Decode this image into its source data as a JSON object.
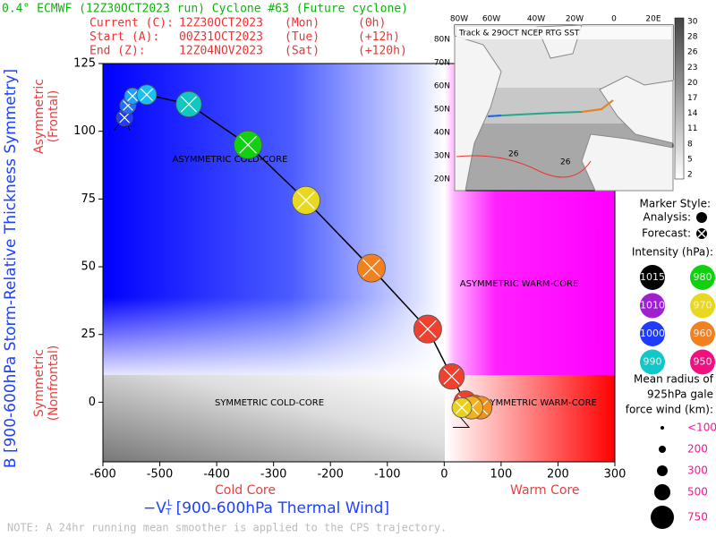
{
  "header": {
    "title": "0.4° ECMWF (12Z30OCT2023 run) Cyclone #63 (Future cyclone)",
    "lines": [
      {
        "label": "Current (C):",
        "time": "12Z30OCT2023",
        "day": "(Mon)",
        "lead": "(0h)"
      },
      {
        "label": "Start (A):",
        "time": "00Z31OCT2023",
        "day": "(Tue)",
        "lead": "(+12h)"
      },
      {
        "label": "End (Z):",
        "time": "12Z04NOV2023",
        "day": "(Sat)",
        "lead": "(+120h)"
      }
    ]
  },
  "chart_data": {
    "type": "line",
    "y_label": "B [900-600hPa Storm-Relative Thickness Symmetry]",
    "y_top_label": [
      "Asymmetric",
      "(Frontal)"
    ],
    "y_bottom_label": [
      "Symmetric",
      "(Nonfrontal)"
    ],
    "x_label": {
      "symbol": "−V",
      "sub": "T",
      "sup": "L",
      "text": " [900-600hPa Thermal Wind]"
    },
    "x_left_label": "Cold Core",
    "x_right_label": "Warm Core",
    "quadrant_labels": [
      "ASYMMETRIC COLD-CORE",
      "ASYMMETRIC WARM-CORE",
      "SYMMETRIC COLD-CORE",
      "SYMMETRIC WARM-CORE"
    ],
    "x": [
      -562,
      -556,
      -548,
      -523,
      -449,
      -345,
      -243,
      -128,
      -29,
      13,
      37,
      53,
      64,
      48,
      31
    ],
    "values": [
      105,
      109.5,
      113,
      113.5,
      110,
      95,
      74.5,
      49.5,
      27,
      9.5,
      0,
      -1.5,
      -2,
      -2,
      -2
    ],
    "gale_radius_km": [
      100,
      100,
      100,
      150,
      250,
      300,
      300,
      300,
      300,
      250,
      200,
      200,
      200,
      200,
      150
    ],
    "colors": [
      "#1e3cff",
      "#2070ff",
      "#1ea0ff",
      "#18c0f0",
      "#10c8c0",
      "#10d010",
      "#e8d820",
      "#f08020",
      "#f04030",
      "#f04030",
      "#f04030",
      "#f07020",
      "#f09020",
      "#f0b020",
      "#e8d020"
    ],
    "line_color": "#000000",
    "xlim": [
      -600,
      300
    ],
    "ylim": [
      -22,
      125
    ],
    "xticks": [
      -600,
      -500,
      -400,
      -300,
      -200,
      -100,
      0,
      100,
      200,
      300
    ],
    "yticks": [
      0,
      25,
      50,
      75,
      100,
      125
    ]
  },
  "inset": {
    "title": "Track & 29OCT NCEP RTG SST",
    "lon_labels": [
      "80W",
      "60W",
      "40W",
      "20W",
      "0",
      "20E"
    ],
    "lat_labels": [
      "80N",
      "70N",
      "60N",
      "50N",
      "40N",
      "30N",
      "20N"
    ],
    "colorbar_labels": [
      "30",
      "28",
      "26",
      "23",
      "20",
      "17",
      "14",
      "11",
      "8",
      "5",
      "2"
    ],
    "contour_labels": [
      "26",
      "26"
    ]
  },
  "legend": {
    "marker_title": "Marker Style:",
    "analysis": "Analysis:",
    "forecast": "Forecast:",
    "intensity_title": "Intensity (hPa):",
    "intensity": [
      {
        "label": "1015",
        "color": "#000000"
      },
      {
        "label": "980",
        "color": "#10d010"
      },
      {
        "label": "1010",
        "color": "#a020d0"
      },
      {
        "label": "970",
        "color": "#e8d820"
      },
      {
        "label": "1000",
        "color": "#1e3cff"
      },
      {
        "label": "960",
        "color": "#f08020"
      },
      {
        "label": "990",
        "color": "#10c8c8"
      },
      {
        "label": "950",
        "color": "#f01080"
      }
    ],
    "radius_title": [
      "Mean radius of",
      "925hPa gale",
      "force wind (km):"
    ],
    "radii": [
      "<100",
      "200",
      "300",
      "500",
      "750"
    ]
  },
  "note": "NOTE:  A 24hr running mean smoother is applied to the CPS trajectory."
}
